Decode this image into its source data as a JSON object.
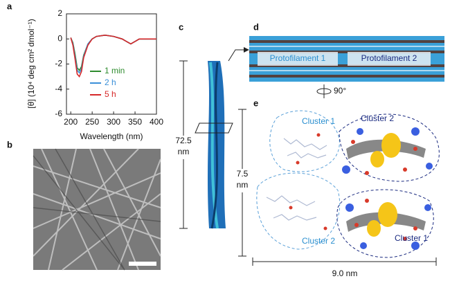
{
  "panel_labels": [
    "a",
    "b",
    "c",
    "d",
    "e"
  ],
  "chart_data": {
    "type": "line",
    "x_label": "Wavelength (nm)",
    "y_label": "[θ] (10⁴ deg cm² dmol⁻¹)",
    "x": [
      200,
      205,
      210,
      215,
      220,
      225,
      230,
      240,
      250,
      260,
      280,
      300,
      320,
      330,
      340,
      350,
      360,
      380,
      400
    ],
    "series": [
      {
        "name": "1 min",
        "color": "#2e8b2e",
        "values": [
          0.1,
          -0.3,
          -1.2,
          -2.3,
          -2.5,
          -2.2,
          -1.3,
          -0.4,
          0,
          0.2,
          0.3,
          0.2,
          0,
          -0.2,
          -0.4,
          -0.2,
          0,
          0,
          0
        ]
      },
      {
        "name": "2 h",
        "color": "#3a8fd8",
        "values": [
          0.1,
          -0.4,
          -1.4,
          -2.5,
          -2.7,
          -2.4,
          -1.4,
          -0.4,
          0,
          0.2,
          0.3,
          0.2,
          0,
          -0.2,
          -0.4,
          -0.2,
          0,
          0,
          0
        ]
      },
      {
        "name": "5 h",
        "color": "#d62728",
        "values": [
          0.1,
          -0.5,
          -1.6,
          -2.8,
          -3.0,
          -2.6,
          -1.5,
          -0.5,
          0,
          0.2,
          0.3,
          0.2,
          0,
          -0.2,
          -0.4,
          -0.2,
          0,
          0,
          0
        ]
      }
    ],
    "xlim": [
      190,
      400
    ],
    "xticks": [
      200,
      250,
      300,
      350,
      400
    ],
    "ylim": [
      -6,
      2
    ],
    "yticks": [
      -6,
      -4,
      -2,
      0,
      2
    ]
  },
  "panel_c": {
    "length_label": [
      "72.5",
      "nm"
    ]
  },
  "panel_d": {
    "labels": [
      "Protofilament 1",
      "Protofilament 2"
    ],
    "rotation": "90°"
  },
  "panel_e": {
    "clusters": [
      "Cluster 1",
      "Cluster 2",
      "Cluster 2",
      "Cluster 1"
    ],
    "height_label": [
      "7.5",
      "nm"
    ],
    "width_label": "9.0 nm"
  }
}
